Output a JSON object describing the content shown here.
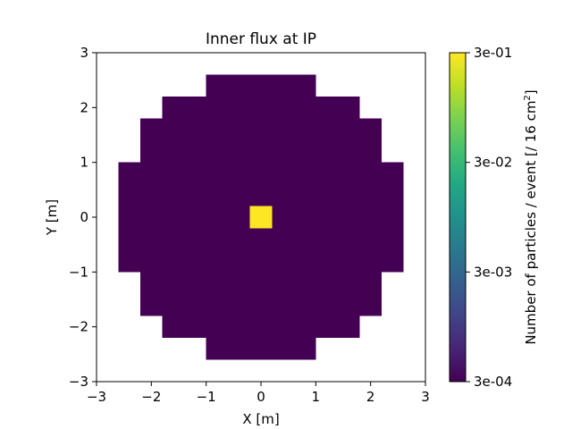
{
  "chart_data": {
    "type": "heatmap",
    "title": "Inner flux at IP",
    "xlabel": "X [m]",
    "ylabel": "Y [m]",
    "xlim": [
      -3,
      3
    ],
    "ylim": [
      -3,
      3
    ],
    "x_ticks": [
      "−3",
      "−2",
      "−1",
      "0",
      "1",
      "2",
      "3"
    ],
    "y_ticks": [
      "−3",
      "−2",
      "−1",
      "0",
      "1",
      "2",
      "3"
    ],
    "x_tick_values": [
      -3,
      -2,
      -1,
      0,
      1,
      2,
      3
    ],
    "y_tick_values": [
      -3,
      -2,
      -1,
      0,
      1,
      2,
      3
    ],
    "grid": false,
    "colormap": "viridis",
    "color_scale": "log",
    "cell_size_m": 0.4,
    "disk": {
      "radius_m": 2.6,
      "value": 0.0003,
      "color": "#440154"
    },
    "hotspot": {
      "x_range": [
        -0.2,
        0.2
      ],
      "y_range": [
        -0.2,
        0.2
      ],
      "value": 0.3,
      "color": "#fde725"
    },
    "colorbar": {
      "label_main": "Number of particles / event [/ 16 cm",
      "label_sup": "2",
      "label_end": "]",
      "range": [
        0.0003,
        0.3
      ],
      "ticks": [
        "3e-01",
        "3e-02",
        "3e-03",
        "3e-04"
      ],
      "tick_values": [
        0.3,
        0.03,
        0.003,
        0.0003
      ]
    }
  }
}
